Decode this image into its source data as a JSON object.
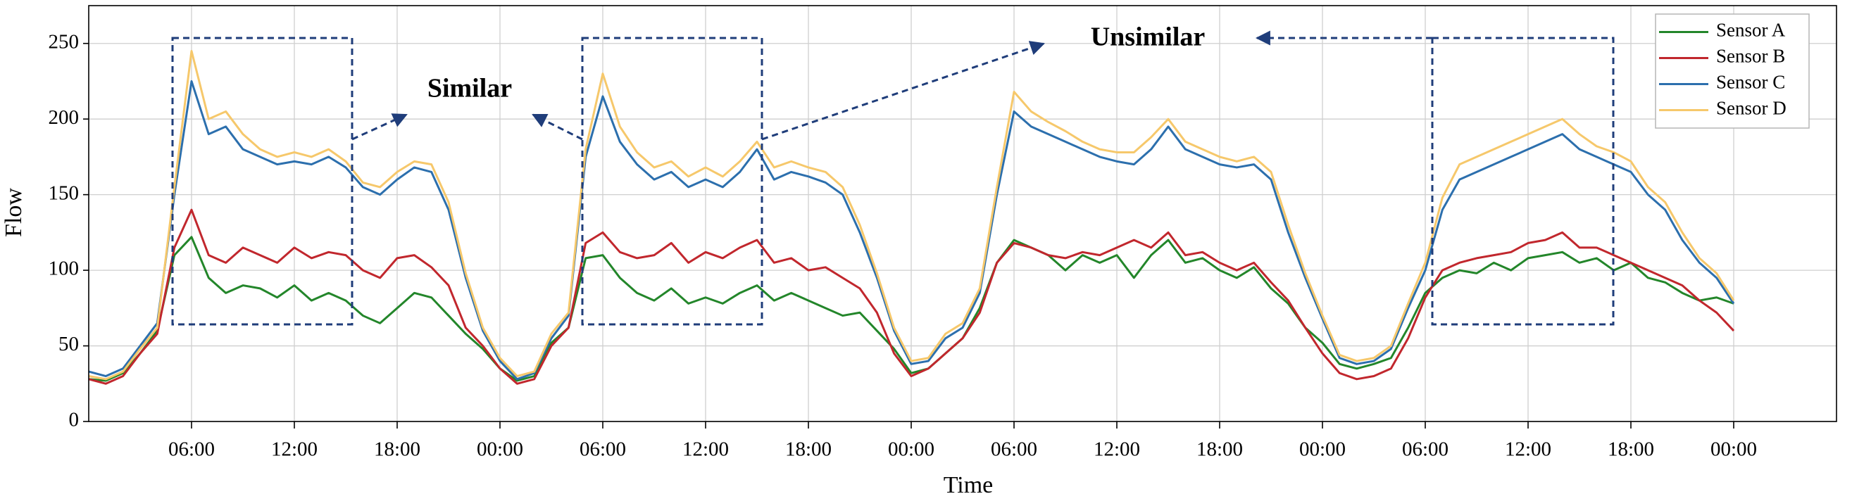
{
  "chart_data": {
    "type": "line",
    "x_label": "Time",
    "y_label": "Flow",
    "x": [
      0,
      1,
      2,
      3,
      4,
      5,
      6,
      7,
      8,
      9,
      10,
      11,
      12,
      13,
      14,
      15,
      16,
      17,
      18,
      19,
      20,
      21,
      22,
      23,
      24,
      25,
      26,
      27,
      28,
      29,
      30,
      31,
      32,
      33,
      34,
      35,
      36,
      37,
      38,
      39,
      40,
      41,
      42,
      43,
      44,
      45,
      46,
      47,
      48,
      49,
      50,
      51,
      52,
      53,
      54,
      55,
      56,
      57,
      58,
      59,
      60,
      61,
      62,
      63,
      64,
      65,
      66,
      67,
      68,
      69,
      70,
      71,
      72,
      73,
      74,
      75,
      76,
      77,
      78,
      79,
      80,
      81,
      82,
      83,
      84,
      85,
      86,
      87,
      88,
      89,
      90,
      91,
      92,
      93,
      94,
      95,
      96
    ],
    "series": [
      {
        "name": "Sensor A",
        "color": "#23862a",
        "values": [
          28,
          27,
          32,
          45,
          60,
          110,
          122,
          95,
          85,
          90,
          88,
          82,
          90,
          80,
          85,
          80,
          70,
          65,
          75,
          85,
          82,
          70,
          58,
          48,
          35,
          27,
          30,
          52,
          62,
          108,
          110,
          95,
          85,
          80,
          88,
          78,
          82,
          78,
          85,
          90,
          80,
          85,
          80,
          75,
          70,
          72,
          60,
          48,
          32,
          35,
          45,
          55,
          75,
          105,
          120,
          115,
          110,
          100,
          110,
          105,
          110,
          95,
          110,
          120,
          105,
          108,
          100,
          95,
          102,
          88,
          78,
          62,
          52,
          38,
          35,
          38,
          42,
          62,
          85,
          95,
          100,
          98,
          105,
          100,
          108,
          110,
          112,
          105,
          108,
          100,
          105,
          95,
          92,
          85,
          80,
          82,
          78
        ]
      },
      {
        "name": "Sensor B",
        "color": "#c1272d",
        "values": [
          28,
          25,
          30,
          45,
          58,
          115,
          140,
          110,
          105,
          115,
          110,
          105,
          115,
          108,
          112,
          110,
          100,
          95,
          108,
          110,
          102,
          90,
          62,
          50,
          35,
          25,
          28,
          50,
          62,
          118,
          125,
          112,
          108,
          110,
          118,
          105,
          112,
          108,
          115,
          120,
          105,
          108,
          100,
          102,
          95,
          88,
          72,
          45,
          30,
          35,
          45,
          55,
          72,
          105,
          118,
          115,
          110,
          108,
          112,
          110,
          115,
          120,
          115,
          125,
          110,
          112,
          105,
          100,
          105,
          92,
          80,
          62,
          45,
          32,
          28,
          30,
          35,
          55,
          82,
          100,
          105,
          108,
          110,
          112,
          118,
          120,
          125,
          115,
          115,
          110,
          105,
          100,
          95,
          90,
          80,
          72,
          60
        ]
      },
      {
        "name": "Sensor C",
        "color": "#2c6fad",
        "values": [
          33,
          30,
          35,
          50,
          65,
          150,
          225,
          190,
          195,
          180,
          175,
          170,
          172,
          170,
          175,
          168,
          155,
          150,
          160,
          168,
          165,
          140,
          95,
          60,
          40,
          28,
          32,
          55,
          70,
          175,
          215,
          185,
          170,
          160,
          165,
          155,
          160,
          155,
          165,
          180,
          160,
          165,
          162,
          158,
          150,
          125,
          95,
          60,
          38,
          40,
          55,
          62,
          85,
          150,
          205,
          195,
          190,
          185,
          180,
          175,
          172,
          170,
          180,
          195,
          180,
          175,
          170,
          168,
          170,
          160,
          125,
          95,
          68,
          42,
          38,
          40,
          48,
          75,
          100,
          140,
          160,
          165,
          170,
          175,
          180,
          185,
          190,
          180,
          175,
          170,
          165,
          150,
          140,
          120,
          105,
          95,
          78
        ]
      },
      {
        "name": "Sensor D",
        "color": "#f6c86b",
        "values": [
          30,
          28,
          33,
          48,
          62,
          155,
          245,
          200,
          205,
          190,
          180,
          175,
          178,
          175,
          180,
          172,
          158,
          155,
          165,
          172,
          170,
          145,
          98,
          62,
          42,
          30,
          33,
          58,
          72,
          180,
          230,
          195,
          178,
          168,
          172,
          162,
          168,
          162,
          172,
          185,
          168,
          172,
          168,
          165,
          155,
          130,
          98,
          62,
          40,
          42,
          58,
          65,
          88,
          155,
          218,
          205,
          198,
          192,
          185,
          180,
          178,
          178,
          188,
          200,
          185,
          180,
          175,
          172,
          175,
          165,
          130,
          98,
          70,
          44,
          40,
          42,
          50,
          78,
          105,
          148,
          170,
          175,
          180,
          185,
          190,
          195,
          200,
          190,
          182,
          178,
          172,
          155,
          145,
          125,
          108,
          98,
          80
        ]
      }
    ],
    "xlim": [
      0,
      102
    ],
    "xticks": [
      {
        "value": 6,
        "label": "06:00"
      },
      {
        "value": 12,
        "label": "12:00"
      },
      {
        "value": 18,
        "label": "18:00"
      },
      {
        "value": 24,
        "label": "00:00"
      },
      {
        "value": 30,
        "label": "06:00"
      },
      {
        "value": 36,
        "label": "12:00"
      },
      {
        "value": 42,
        "label": "18:00"
      },
      {
        "value": 48,
        "label": "00:00"
      },
      {
        "value": 54,
        "label": "06:00"
      },
      {
        "value": 60,
        "label": "12:00"
      },
      {
        "value": 66,
        "label": "18:00"
      },
      {
        "value": 72,
        "label": "00:00"
      },
      {
        "value": 78,
        "label": "06:00"
      },
      {
        "value": 84,
        "label": "12:00"
      },
      {
        "value": 90,
        "label": "18:00"
      },
      {
        "value": 96,
        "label": "00:00"
      }
    ],
    "ylim": [
      0,
      275
    ],
    "yticks": [
      0,
      50,
      100,
      150,
      200,
      250
    ],
    "grid": true,
    "legend": "upper right",
    "annotations": [
      {
        "text": "Similar"
      },
      {
        "text": "Unsimilar"
      }
    ]
  }
}
